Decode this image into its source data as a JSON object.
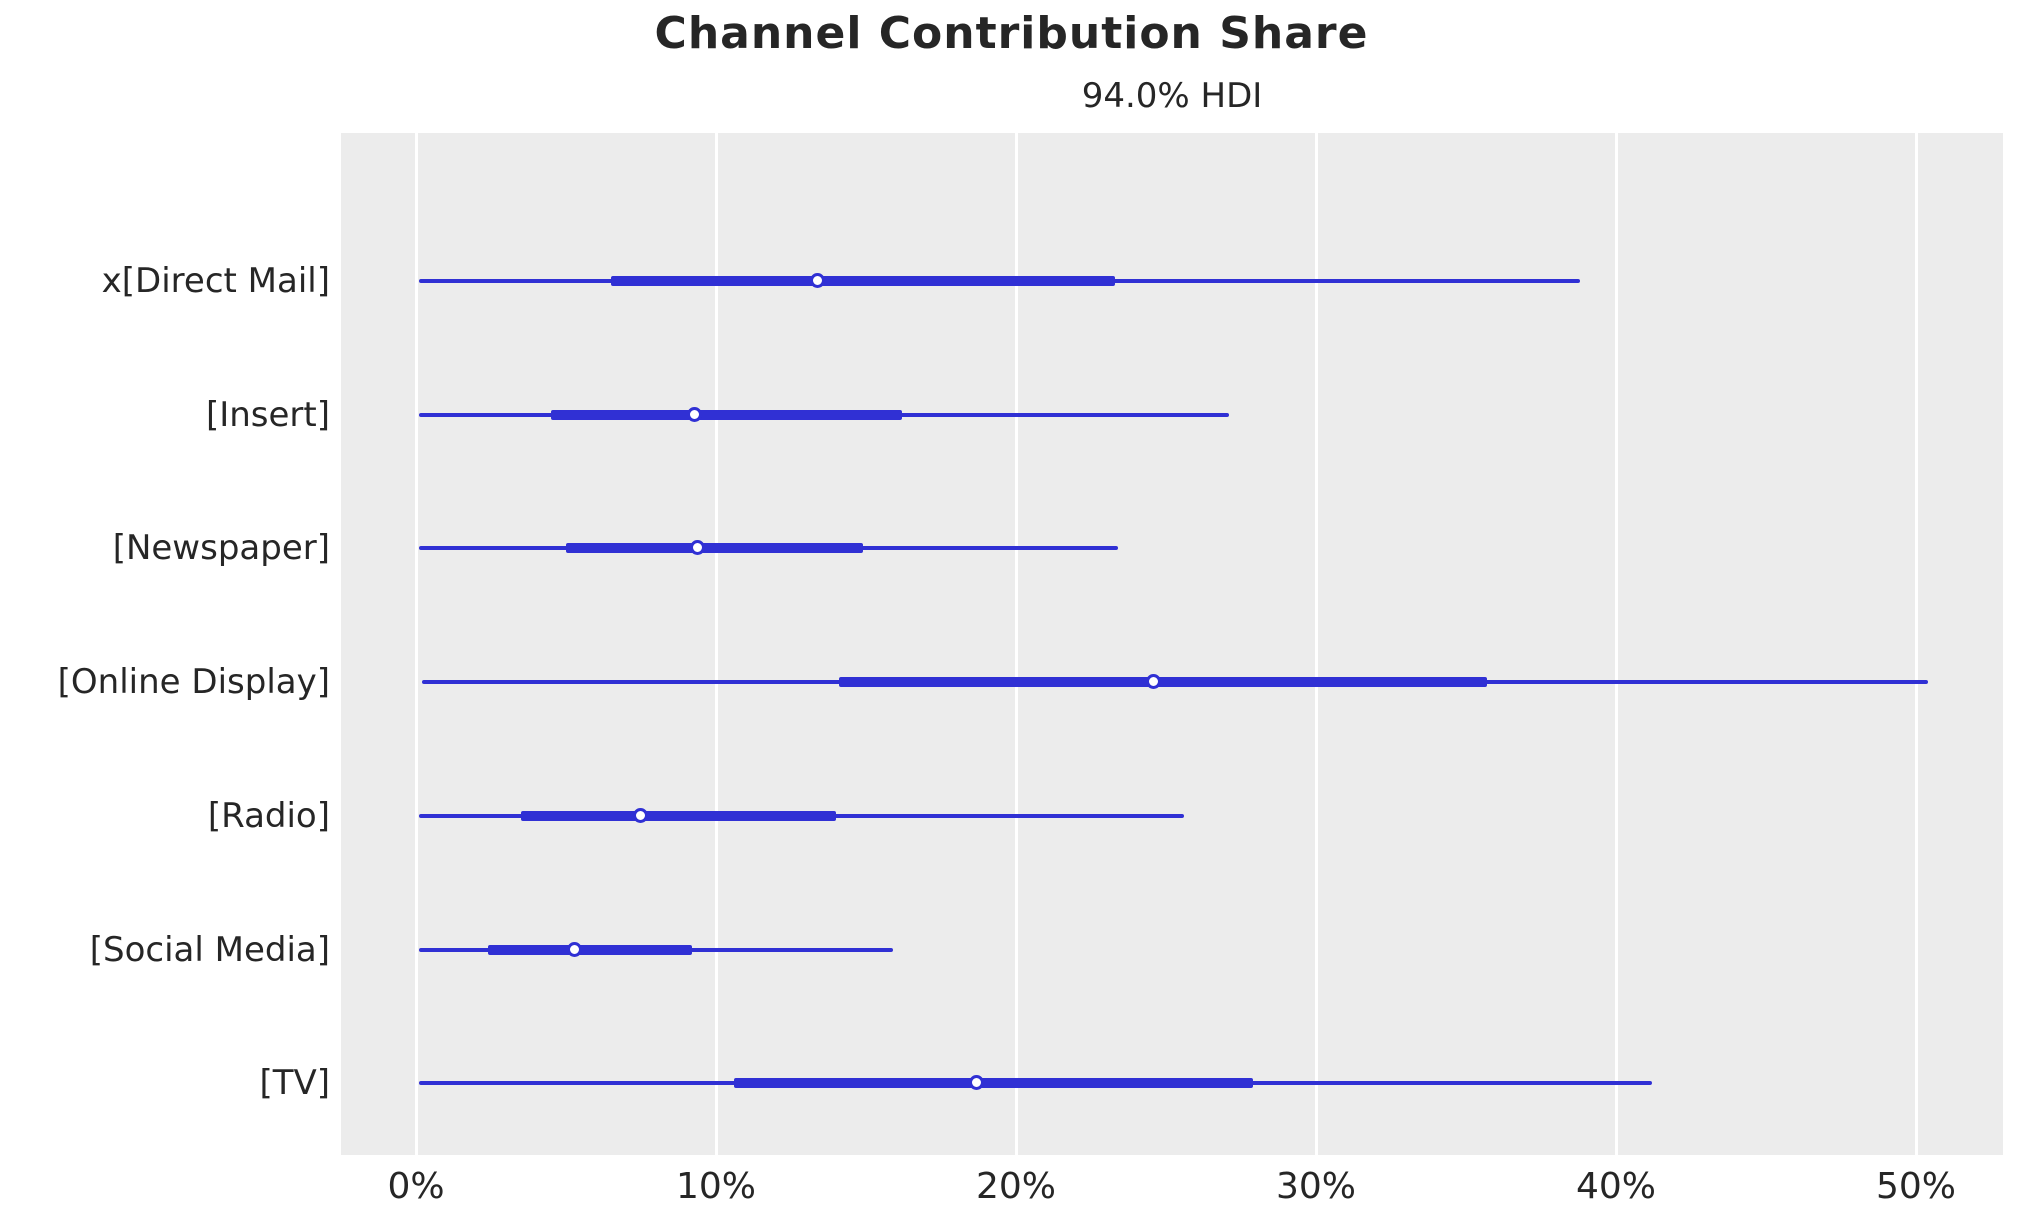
{
  "header": {
    "title": "Channel Contribution Share",
    "subtitle": "94.0% HDI"
  },
  "chart_data": {
    "type": "forest",
    "orientation": "horizontal",
    "title": "Channel Contribution Share",
    "subtitle": "94.0% HDI",
    "hdi_probability": "94.0%",
    "xlabel": "",
    "ylabel": "",
    "x_unit": "percent",
    "xlim": [
      -2.5,
      52.9
    ],
    "x_ticks": [
      0,
      10,
      20,
      30,
      40,
      50
    ],
    "x_tick_labels": [
      "0%",
      "10%",
      "20%",
      "30%",
      "40%",
      "50%"
    ],
    "grid": "vertical-white-gridlines",
    "legend": "none",
    "categories": [
      "x[Direct Mail]",
      "[Insert]",
      "[Newspaper]",
      "[Online Display]",
      "[Radio]",
      "[Social Media]",
      "[TV]"
    ],
    "rows": [
      {
        "label": "x[Direct Mail]",
        "hdi_94": [
          0.1,
          38.8
        ],
        "inner_interval": [
          6.5,
          23.3
        ],
        "point": 13.4
      },
      {
        "label": "[Insert]",
        "hdi_94": [
          0.1,
          27.1
        ],
        "inner_interval": [
          4.5,
          16.2
        ],
        "point": 9.3
      },
      {
        "label": "[Newspaper]",
        "hdi_94": [
          0.1,
          23.4
        ],
        "inner_interval": [
          5.0,
          14.9
        ],
        "point": 9.4
      },
      {
        "label": "[Online Display]",
        "hdi_94": [
          0.2,
          50.4
        ],
        "inner_interval": [
          14.1,
          35.7
        ],
        "point": 24.6
      },
      {
        "label": "[Radio]",
        "hdi_94": [
          0.1,
          25.6
        ],
        "inner_interval": [
          3.5,
          14.0
        ],
        "point": 7.5
      },
      {
        "label": "[Social Media]",
        "hdi_94": [
          0.1,
          15.9
        ],
        "inner_interval": [
          2.4,
          9.2
        ],
        "point": 5.3
      },
      {
        "label": "[TV]",
        "hdi_94": [
          0.1,
          41.2
        ],
        "inner_interval": [
          10.6,
          27.9
        ],
        "point": 18.7
      }
    ],
    "colors": {
      "interval": "#3030d4",
      "point_fill": "#ffffff",
      "point_edge": "#3030d4",
      "panel_bg": "#ececec",
      "grid": "#ffffff",
      "text": "#262626"
    }
  }
}
